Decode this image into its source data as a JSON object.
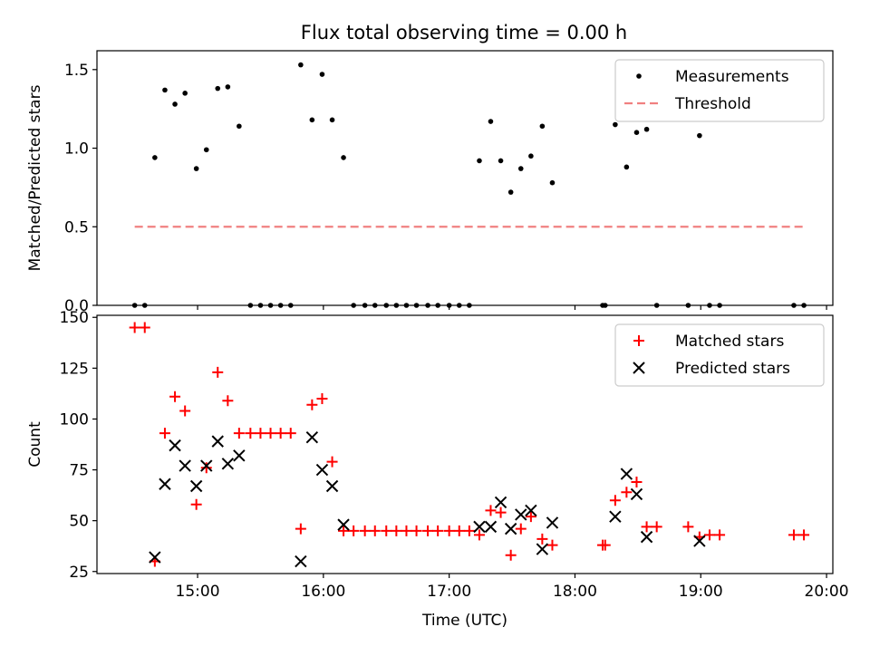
{
  "figure": {
    "title": "Flux total observing time = 0.00 h"
  },
  "chart_data": [
    {
      "type": "scatter",
      "name": "ratio-panel",
      "ylabel": "Matched/Predicted stars",
      "xlabel": "",
      "xlim": [
        14.2,
        20.05
      ],
      "ylim": [
        0,
        1.62
      ],
      "xticks": [
        15,
        16,
        17,
        18,
        19,
        20
      ],
      "xtick_labels_visible": false,
      "yticks": [
        0.0,
        0.5,
        1.0,
        1.5
      ],
      "ytick_labels": [
        "0.0",
        "0.5",
        "1.0",
        "1.5"
      ],
      "legend_position": "top-right",
      "series": [
        {
          "name": "Measurements",
          "marker": "dot",
          "color": "#000000",
          "x": [
            14.5,
            14.58,
            14.66,
            14.74,
            14.82,
            14.9,
            14.99,
            15.07,
            15.16,
            15.24,
            15.33,
            15.42,
            15.5,
            15.58,
            15.66,
            15.74,
            15.82,
            15.91,
            15.99,
            16.07,
            16.16,
            16.24,
            16.33,
            16.41,
            16.5,
            16.58,
            16.66,
            16.74,
            16.83,
            16.91,
            17.0,
            17.08,
            17.16,
            17.24,
            17.33,
            17.41,
            17.49,
            17.57,
            17.65,
            17.74,
            17.82,
            18.22,
            18.24,
            18.32,
            18.41,
            18.49,
            18.57,
            18.65,
            18.9,
            18.99,
            19.07,
            19.15,
            19.74,
            19.82
          ],
          "y": [
            0,
            0,
            0.94,
            1.37,
            1.28,
            1.35,
            0.87,
            0.99,
            1.38,
            1.39,
            1.14,
            0,
            0,
            0,
            0,
            0,
            1.53,
            1.18,
            1.47,
            1.18,
            0.94,
            0,
            0,
            0,
            0,
            0,
            0,
            0,
            0,
            0,
            0,
            0,
            0,
            0.92,
            1.17,
            0.92,
            0.72,
            0.87,
            0.95,
            1.14,
            0.78,
            0,
            0,
            1.15,
            0.88,
            1.1,
            1.12,
            0,
            0,
            1.08,
            0,
            0,
            0,
            0
          ]
        },
        {
          "name": "Threshold",
          "style": "dashed",
          "color": "#f08080",
          "x": [
            14.5,
            19.82
          ],
          "y": [
            0.5,
            0.5
          ]
        }
      ]
    },
    {
      "type": "scatter",
      "name": "count-panel",
      "ylabel": "Count",
      "xlabel": "Time (UTC)",
      "xlim": [
        14.2,
        20.05
      ],
      "ylim": [
        24,
        151
      ],
      "xticks": [
        15,
        16,
        17,
        18,
        19,
        20
      ],
      "xtick_labels": [
        "15:00",
        "16:00",
        "17:00",
        "18:00",
        "19:00",
        "20:00"
      ],
      "yticks": [
        25,
        50,
        75,
        100,
        125,
        150
      ],
      "ytick_labels": [
        "25",
        "50",
        "75",
        "100",
        "125",
        "150"
      ],
      "legend_position": "top-right",
      "series": [
        {
          "name": "Matched stars",
          "marker": "plus",
          "color": "#ff0000",
          "x": [
            14.5,
            14.58,
            14.66,
            14.74,
            14.82,
            14.9,
            14.99,
            15.07,
            15.16,
            15.24,
            15.33,
            15.42,
            15.5,
            15.58,
            15.66,
            15.74,
            15.82,
            15.91,
            15.99,
            16.07,
            16.16,
            16.24,
            16.33,
            16.41,
            16.5,
            16.58,
            16.66,
            16.74,
            16.83,
            16.91,
            17.0,
            17.08,
            17.16,
            17.24,
            17.33,
            17.41,
            17.49,
            17.57,
            17.65,
            17.74,
            17.82,
            18.22,
            18.24,
            18.32,
            18.41,
            18.49,
            18.57,
            18.65,
            18.9,
            18.99,
            19.07,
            19.15,
            19.74,
            19.82
          ],
          "y": [
            145,
            145,
            30,
            93,
            111,
            104,
            58,
            76,
            123,
            109,
            93,
            93,
            93,
            93,
            93,
            93,
            46,
            107,
            110,
            79,
            45,
            45,
            45,
            45,
            45,
            45,
            45,
            45,
            45,
            45,
            45,
            45,
            45,
            43,
            55,
            54,
            33,
            46,
            52,
            41,
            38,
            38,
            38,
            60,
            64,
            69,
            47,
            47,
            47,
            42,
            43,
            43,
            43,
            43
          ]
        },
        {
          "name": "Predicted stars",
          "marker": "x",
          "color": "#000000",
          "x": [
            14.66,
            14.74,
            14.82,
            14.9,
            14.99,
            15.07,
            15.16,
            15.24,
            15.33,
            15.82,
            15.91,
            15.99,
            16.07,
            16.16,
            17.24,
            17.33,
            17.41,
            17.49,
            17.57,
            17.65,
            17.74,
            17.82,
            18.32,
            18.41,
            18.49,
            18.57,
            18.99
          ],
          "y": [
            32,
            68,
            87,
            77,
            67,
            77,
            89,
            78,
            82,
            30,
            91,
            75,
            67,
            48,
            47,
            47,
            59,
            46,
            53,
            55,
            36,
            49,
            52,
            73,
            63,
            42,
            40
          ]
        }
      ]
    }
  ]
}
